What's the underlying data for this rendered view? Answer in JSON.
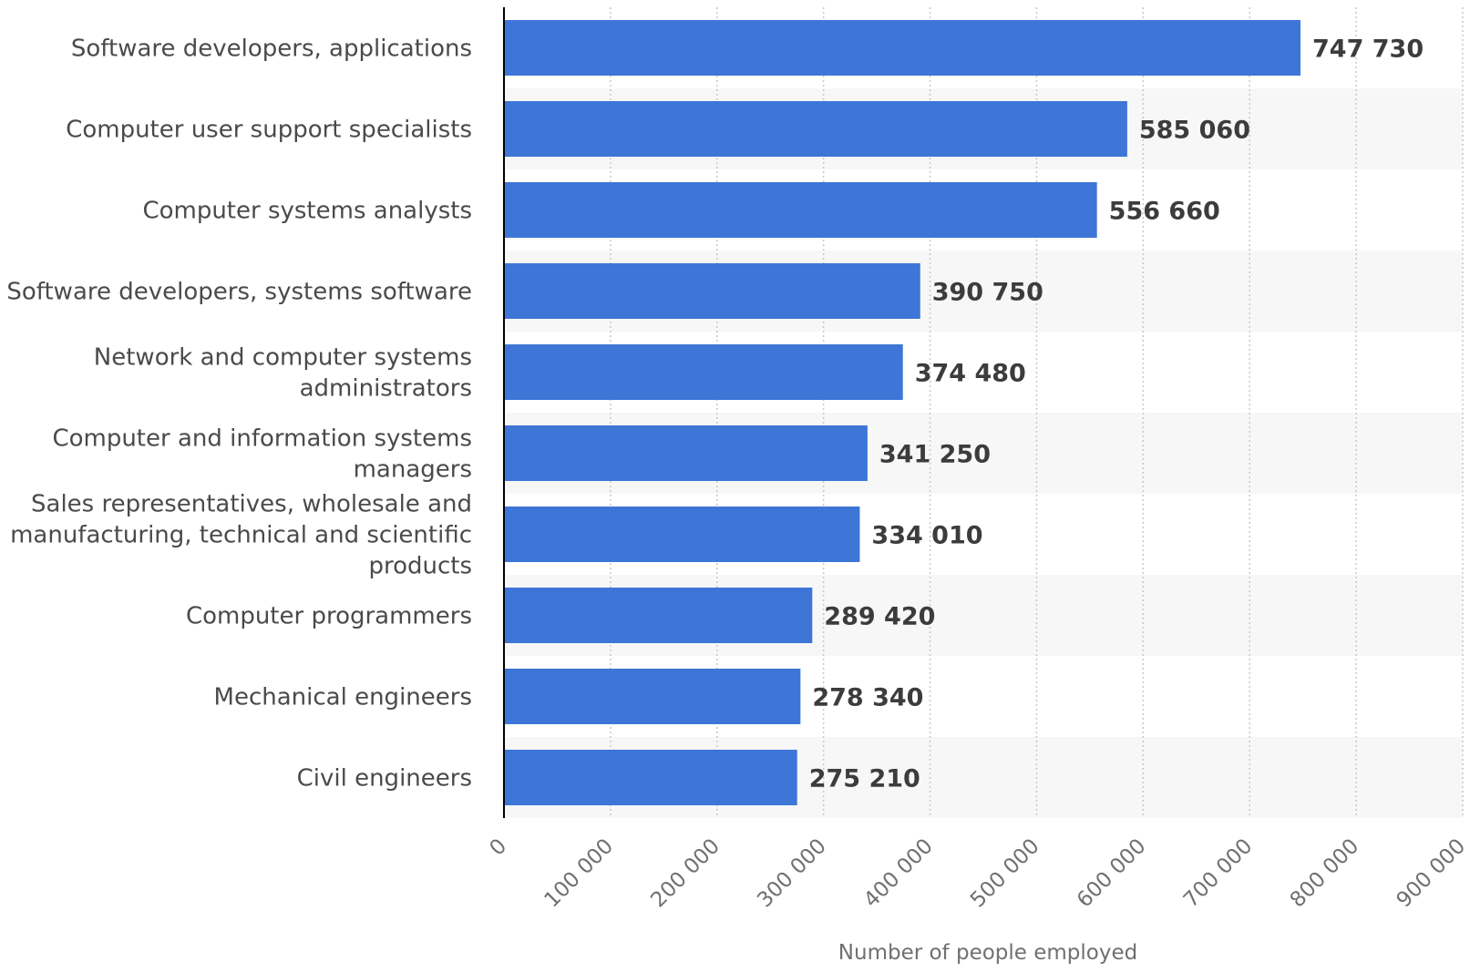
{
  "chart_data": {
    "type": "bar",
    "orientation": "horizontal",
    "categories": [
      [
        "Software developers, applications"
      ],
      [
        "Computer user support specialists"
      ],
      [
        "Computer systems analysts"
      ],
      [
        "Software developers, systems software"
      ],
      [
        "Network and computer systems",
        "administrators"
      ],
      [
        "Computer and information systems",
        "managers"
      ],
      [
        "Sales representatives, wholesale and",
        "manufacturing, technical and scientific",
        "products"
      ],
      [
        "Computer programmers"
      ],
      [
        "Mechanical engineers"
      ],
      [
        "Civil engineers"
      ]
    ],
    "values": [
      747730,
      585060,
      556660,
      390750,
      374480,
      341250,
      334010,
      289420,
      278340,
      275210
    ],
    "value_labels": [
      "747 730",
      "585 060",
      "556 660",
      "390 750",
      "374 480",
      "341 250",
      "334 010",
      "289 420",
      "278 340",
      "275 210"
    ],
    "xlim": [
      0,
      900000
    ],
    "ticks": [
      0,
      100000,
      200000,
      300000,
      400000,
      500000,
      600000,
      700000,
      800000,
      900000
    ],
    "tick_labels": [
      "0",
      "100 000",
      "200 000",
      "300 000",
      "400 000",
      "500 000",
      "600 000",
      "700 000",
      "800 000",
      "900 000"
    ],
    "xlabel": "Number of people employed",
    "ylabel": "",
    "title": "",
    "grid": true,
    "colors": {
      "bar": "#3d76d6",
      "band": "#f7f7f7",
      "grid": "#c8c8c8",
      "axis": "#000000"
    }
  }
}
